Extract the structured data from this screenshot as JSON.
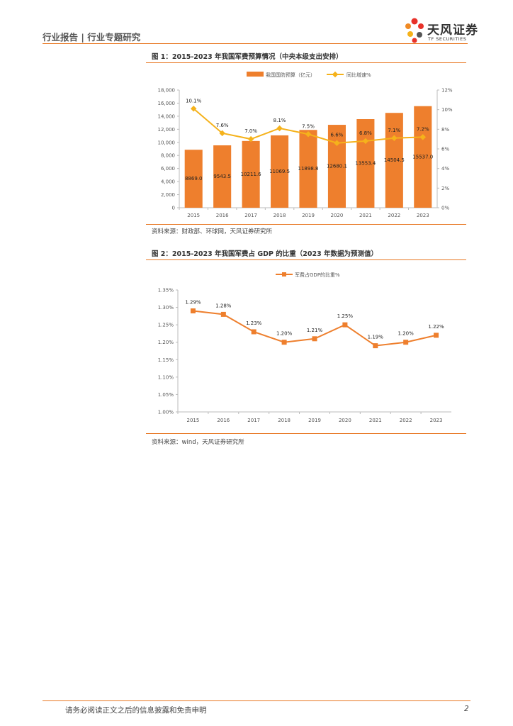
{
  "header": {
    "report_type": "行业报告 | 行业专题研究",
    "brand_name": "天风证券",
    "brand_sub": "TF SECURITIES"
  },
  "figure1": {
    "title": "图 1：2015-2023 年我国军费预算情况（中央本级支出安排）",
    "source": "资料来源：财政部、环球网，天风证券研究所"
  },
  "figure2": {
    "title": "图 2：2015-2023 年我国军费占 GDP 的比重（2023 年数据为预测值）",
    "source": "资料来源：wind，天风证券研究所"
  },
  "footer": {
    "disclaimer": "请务必阅读正文之后的信息披露和免责申明",
    "page": "2"
  },
  "colors": {
    "accent": "#e87722",
    "bar": "#ee7f2d",
    "line1": "#f5b21b",
    "line2": "#ee7f2d"
  },
  "chart_data": [
    {
      "type": "bar",
      "categories": [
        "2015",
        "2016",
        "2017",
        "2018",
        "2019",
        "2020",
        "2021",
        "2022",
        "2023"
      ],
      "series": [
        {
          "name": "我国国防预算（亿元）",
          "kind": "bar",
          "axis": "left",
          "values": [
            8869.0,
            9543.5,
            10211.6,
            11069.5,
            11898.8,
            12680.1,
            13553.4,
            14504.5,
            15537.0
          ],
          "labels": [
            "8869.0",
            "9543.5",
            "10211.6",
            "11069.5",
            "11898.8",
            "12680.1",
            "13553.4",
            "14504.5",
            "15537.0"
          ]
        },
        {
          "name": "同比增速%",
          "kind": "line",
          "axis": "right",
          "values": [
            10.1,
            7.6,
            7.0,
            8.1,
            7.5,
            6.6,
            6.8,
            7.1,
            7.2
          ],
          "labels": [
            "10.1%",
            "7.6%",
            "7.0%",
            "8.1%",
            "7.5%",
            "6.6%",
            "6.8%",
            "7.1%",
            "7.2%"
          ]
        }
      ],
      "ylim": [
        0,
        18000
      ],
      "y_ticks": [
        "0",
        "2,000",
        "4,000",
        "6,000",
        "8,000",
        "10,000",
        "12,000",
        "14,000",
        "16,000",
        "18,000"
      ],
      "y2lim": [
        0,
        12
      ],
      "y2_ticks": [
        "0%",
        "2%",
        "4%",
        "6%",
        "8%",
        "10%",
        "12%"
      ],
      "legend": "top-center"
    },
    {
      "type": "line",
      "categories": [
        "2015",
        "2016",
        "2017",
        "2018",
        "2019",
        "2020",
        "2021",
        "2022",
        "2023"
      ],
      "series": [
        {
          "name": "军费占GDP的比重%",
          "values": [
            1.29,
            1.28,
            1.23,
            1.2,
            1.21,
            1.25,
            1.19,
            1.2,
            1.22
          ],
          "labels": [
            "1.29%",
            "1.28%",
            "1.23%",
            "1.20%",
            "1.21%",
            "1.25%",
            "1.19%",
            "1.20%",
            "1.22%"
          ]
        }
      ],
      "ylim": [
        1.0,
        1.35
      ],
      "y_ticks": [
        "1.00%",
        "1.05%",
        "1.10%",
        "1.15%",
        "1.20%",
        "1.25%",
        "1.30%",
        "1.35%"
      ],
      "legend": "top-center"
    }
  ]
}
